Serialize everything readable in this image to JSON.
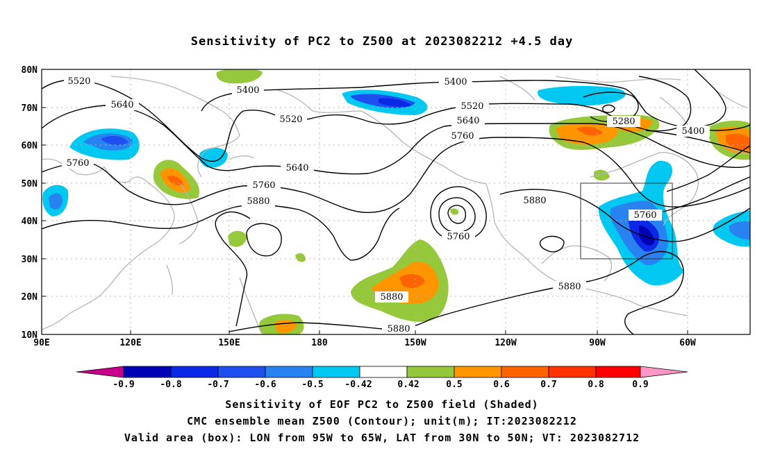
{
  "title": "Sensitivity of PC2 to Z500 at 2023082212 +4.5 day",
  "map": {
    "lat_labels": [
      "80N",
      "70N",
      "60N",
      "50N",
      "40N",
      "30N",
      "20N",
      "10N"
    ],
    "lon_labels": [
      "90E",
      "120E",
      "150E",
      "180",
      "150W",
      "120W",
      "90W",
      "60W"
    ],
    "contour_labels": [
      {
        "text": "5520"
      },
      {
        "text": "5400"
      },
      {
        "text": "5640"
      },
      {
        "text": "5520"
      },
      {
        "text": "5400"
      },
      {
        "text": "5520"
      },
      {
        "text": "5640"
      },
      {
        "text": "5760"
      },
      {
        "text": "5280"
      },
      {
        "text": "5400"
      },
      {
        "text": "5760"
      },
      {
        "text": "5640"
      },
      {
        "text": "5760"
      },
      {
        "text": "5880"
      },
      {
        "text": "5880"
      },
      {
        "text": "5760"
      },
      {
        "text": "5760"
      },
      {
        "text": "5880"
      },
      {
        "text": "5880"
      },
      {
        "text": "5880"
      }
    ],
    "valid_box": {
      "lon": [
        "95W",
        "65W"
      ],
      "lat": [
        "30N",
        "50N"
      ]
    }
  },
  "colorbar": {
    "labels": [
      "-0.9",
      "-0.8",
      "-0.7",
      "-0.6",
      "-0.5",
      "-0.42",
      "0.42",
      "0.5",
      "0.6",
      "0.7",
      "0.8",
      "0.9"
    ],
    "colors": [
      "#c8008c",
      "#0000b4",
      "#0a28e6",
      "#1e50f0",
      "#2882f0",
      "#00c8f0",
      "#ffffff",
      "#96c83c",
      "#ff9600",
      "#ff6400",
      "#ff3200",
      "#ff0000",
      "#ff96c8"
    ]
  },
  "captions": {
    "line1": "Sensitivity of EOF PC2 to Z500 field (Shaded)",
    "line2": "CMC ensemble mean Z500 (Contour); unit(m); IT:2023082212",
    "line3": "Valid area (box): LON from 95W to 65W, LAT from 30N to 50N; VT: 2023082712"
  }
}
